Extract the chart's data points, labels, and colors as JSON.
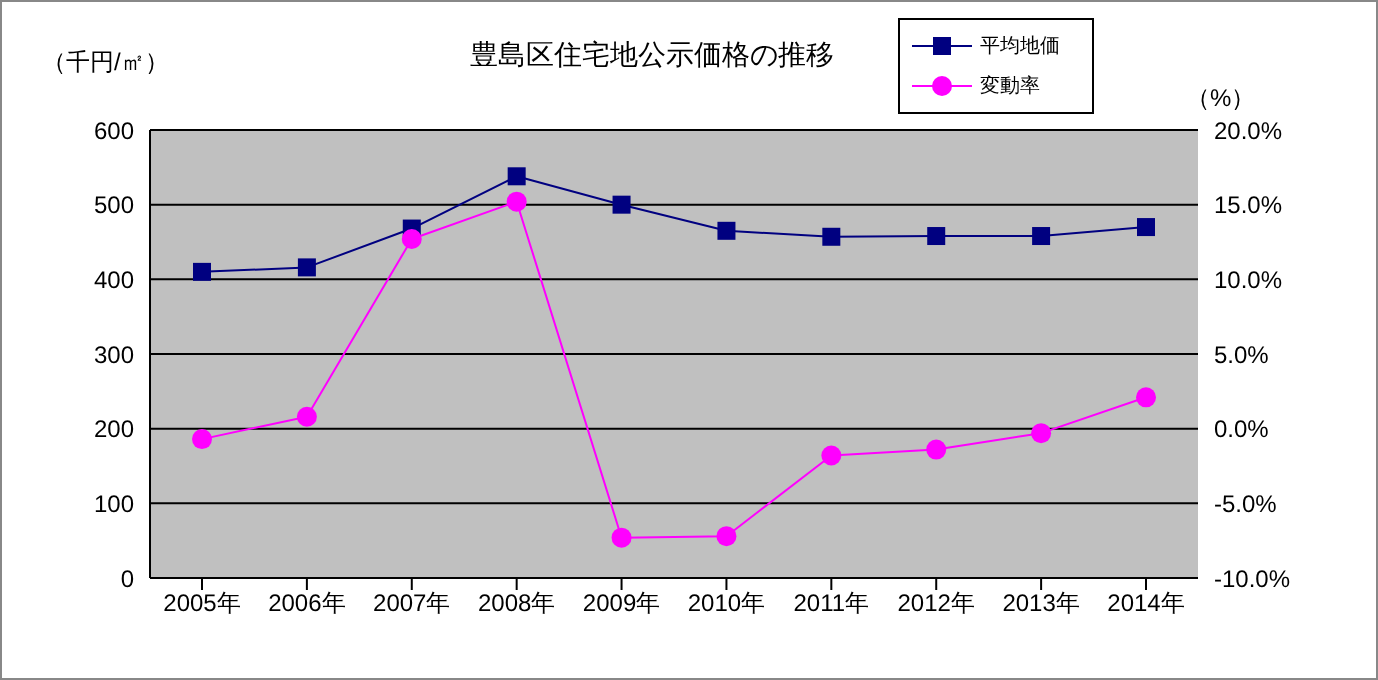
{
  "chart_data": {
    "type": "line",
    "title": "豊島区住宅地公示価格の推移",
    "ylabel": "（千円/㎡）",
    "y2label": "（%）",
    "categories": [
      "2005年",
      "2006年",
      "2007年",
      "2008年",
      "2009年",
      "2010年",
      "2011年",
      "2012年",
      "2013年",
      "2014年"
    ],
    "series": [
      {
        "name": "平均地価",
        "color": "#000080",
        "marker": "square",
        "values": [
          410,
          416,
          468,
          538,
          500,
          465,
          457,
          458,
          458,
          470
        ]
      },
      {
        "name": "変動率",
        "color": "#ff00ff",
        "marker": "circle",
        "axis": "y2",
        "values": [
          -0.7,
          0.8,
          12.7,
          15.2,
          -7.3,
          -7.2,
          -1.8,
          -1.4,
          -0.3,
          2.1
        ]
      }
    ],
    "ylim": [
      0,
      600
    ],
    "yticks": [
      0,
      100,
      200,
      300,
      400,
      500,
      600
    ],
    "y2lim": [
      -10,
      20
    ],
    "y2ticks": [
      {
        "value": -10,
        "label": "-10.0%"
      },
      {
        "value": -5,
        "label": "-5.0%"
      },
      {
        "value": 0,
        "label": "0.0%"
      },
      {
        "value": 5,
        "label": "5.0%"
      },
      {
        "value": 10,
        "label": "10.0%"
      },
      {
        "value": 15,
        "label": "15.0%"
      },
      {
        "value": 20,
        "label": "20.0%"
      }
    ],
    "grid": "y",
    "legend": "top right",
    "line_style": "solid"
  }
}
